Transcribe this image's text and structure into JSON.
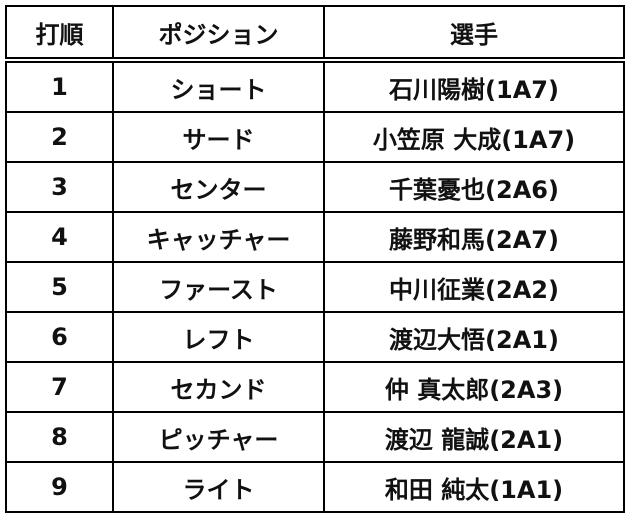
{
  "headers": {
    "order": "打順",
    "position": "ポジション",
    "player": "選手"
  },
  "rows": [
    {
      "order": "1",
      "position": "ショート",
      "player": "石川陽樹(1A7)"
    },
    {
      "order": "2",
      "position": "サード",
      "player": "小笠原 大成(1A7)"
    },
    {
      "order": "3",
      "position": "センター",
      "player": "千葉憂也(2A6)"
    },
    {
      "order": "4",
      "position": "キャッチャー",
      "player": "藤野和馬(2A7)"
    },
    {
      "order": "5",
      "position": "ファースト",
      "player": "中川征業(2A2)"
    },
    {
      "order": "6",
      "position": "レフト",
      "player": "渡辺大悟(2A1)"
    },
    {
      "order": "7",
      "position": "セカンド",
      "player": "仲 真太郎(2A3)"
    },
    {
      "order": "8",
      "position": "ピッチャー",
      "player": "渡辺 龍誠(2A1)"
    },
    {
      "order": "9",
      "position": "ライト",
      "player": "和田 純太(1A1)"
    }
  ]
}
